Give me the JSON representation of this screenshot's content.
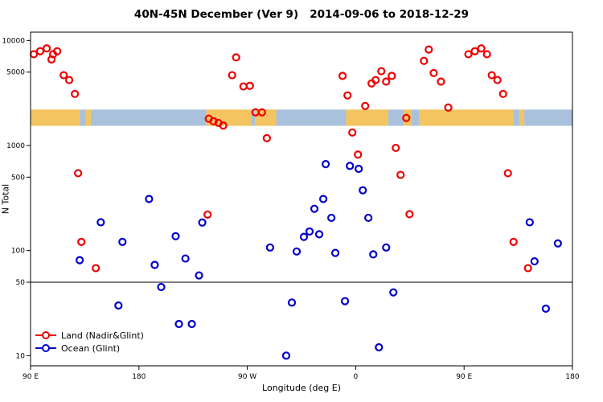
{
  "chart_data": {
    "type": "scatter",
    "title": "40N-45N December (Ver 9)   2014-09-06 to 2018-12-29",
    "xlabel": "Longitude (deg E)",
    "ylabel": "N Total",
    "y_scale": "log",
    "y_range": [
      8,
      12000
    ],
    "y_ticks": [
      10,
      50,
      100,
      500,
      1000,
      5000,
      10000
    ],
    "x_span_deg": 450,
    "x_ticks": [
      {
        "pos": 0,
        "label": "90 E"
      },
      {
        "pos": 90,
        "label": "180"
      },
      {
        "pos": 180,
        "label": "90 W"
      },
      {
        "pos": 270,
        "label": "0"
      },
      {
        "pos": 360,
        "label": "90 E"
      },
      {
        "pos": 450,
        "label": "180"
      }
    ],
    "reference_line_y": 50,
    "map_band": {
      "value_top": 2200,
      "value_bottom": 1540,
      "land_color": "#f3c45f",
      "ocean_color": "#a9c1dd",
      "segments": [
        {
          "from": 0,
          "to": 41,
          "type": "land"
        },
        {
          "from": 41,
          "to": 46,
          "type": "ocean"
        },
        {
          "from": 46,
          "to": 50,
          "type": "land"
        },
        {
          "from": 50,
          "to": 146,
          "type": "ocean"
        },
        {
          "from": 146,
          "to": 183,
          "type": "land"
        },
        {
          "from": 183,
          "to": 186.5,
          "type": "ocean"
        },
        {
          "from": 186.5,
          "to": 204,
          "type": "land"
        },
        {
          "from": 204,
          "to": 262,
          "type": "ocean"
        },
        {
          "from": 262,
          "to": 297,
          "type": "land"
        },
        {
          "from": 297,
          "to": 310,
          "type": "ocean"
        },
        {
          "from": 310,
          "to": 316,
          "type": "land"
        },
        {
          "from": 316,
          "to": 323,
          "type": "ocean"
        },
        {
          "from": 323,
          "to": 401,
          "type": "land"
        },
        {
          "from": 401,
          "to": 406,
          "type": "ocean"
        },
        {
          "from": 406,
          "to": 410,
          "type": "land"
        },
        {
          "from": 410,
          "to": 450,
          "type": "ocean"
        }
      ]
    },
    "series": [
      {
        "name": "Land (Nadir&Glint)",
        "color": "#ee0000",
        "points": [
          [
            2.7,
            7400
          ],
          [
            8,
            7900
          ],
          [
            13.4,
            8400
          ],
          [
            17.4,
            6600
          ],
          [
            18.7,
            7400
          ],
          [
            22.1,
            7900
          ],
          [
            27.5,
            4670
          ],
          [
            32.1,
            4200
          ],
          [
            36.8,
            3100
          ],
          [
            39.5,
            545
          ],
          [
            42.2,
            121
          ],
          [
            54.2,
            68
          ],
          [
            147,
            220
          ],
          [
            148,
            1800
          ],
          [
            152,
            1700
          ],
          [
            156,
            1640
          ],
          [
            160,
            1550
          ],
          [
            167.4,
            4670
          ],
          [
            170.7,
            6900
          ],
          [
            176.8,
            3650
          ],
          [
            182.1,
            3700
          ],
          [
            186.8,
            2070
          ],
          [
            192.2,
            2070
          ],
          [
            196.2,
            1175
          ],
          [
            259.1,
            4600
          ],
          [
            263.2,
            3000
          ],
          [
            267.2,
            1330
          ],
          [
            271.9,
            820
          ],
          [
            277.9,
            2380
          ],
          [
            283.2,
            3900
          ],
          [
            286.6,
            4200
          ],
          [
            291.3,
            5100
          ],
          [
            295.3,
            4060
          ],
          [
            300,
            4600
          ],
          [
            303.3,
            950
          ],
          [
            307.3,
            525
          ],
          [
            312,
            1830
          ],
          [
            314.7,
            222
          ],
          [
            326.7,
            6400
          ],
          [
            330.7,
            8200
          ],
          [
            334.8,
            4900
          ],
          [
            340.8,
            4060
          ],
          [
            346.9,
            2300
          ],
          [
            363.6,
            7400
          ],
          [
            368.9,
            7900
          ],
          [
            374.3,
            8400
          ],
          [
            379,
            7400
          ],
          [
            383,
            4670
          ],
          [
            387.7,
            4200
          ],
          [
            392.4,
            3100
          ],
          [
            396.4,
            545
          ],
          [
            401.1,
            121
          ],
          [
            413.1,
            68
          ]
        ]
      },
      {
        "name": "Ocean (Glint)",
        "color": "#0000cc",
        "points": [
          [
            40.8,
            81
          ],
          [
            58.3,
            186
          ],
          [
            73,
            30
          ],
          [
            76.3,
            121
          ],
          [
            98.4,
            310
          ],
          [
            103.1,
            73
          ],
          [
            108.5,
            45
          ],
          [
            120.5,
            137
          ],
          [
            123.2,
            20
          ],
          [
            128.6,
            84
          ],
          [
            133.9,
            20
          ],
          [
            139.9,
            58
          ],
          [
            142.6,
            185
          ],
          [
            198.9,
            107
          ],
          [
            212.3,
            10
          ],
          [
            217,
            32
          ],
          [
            221,
            98
          ],
          [
            227,
            135
          ],
          [
            231.7,
            152
          ],
          [
            235.7,
            250
          ],
          [
            239.7,
            143
          ],
          [
            243.1,
            310
          ],
          [
            245.1,
            665
          ],
          [
            249.8,
            205
          ],
          [
            253.1,
            95
          ],
          [
            261.1,
            33
          ],
          [
            265.2,
            640
          ],
          [
            272.5,
            600
          ],
          [
            275.9,
            375
          ],
          [
            280.5,
            205
          ],
          [
            284.6,
            92
          ],
          [
            289.3,
            12
          ],
          [
            295.3,
            107
          ],
          [
            301.3,
            40
          ],
          [
            414.5,
            186
          ],
          [
            418.5,
            79
          ],
          [
            427.9,
            28
          ],
          [
            437.9,
            117
          ]
        ]
      }
    ]
  },
  "legend": {
    "items": [
      {
        "label": "Land (Nadir&Glint)",
        "color": "#ee0000"
      },
      {
        "label": "Ocean (Glint)",
        "color": "#0000cc"
      }
    ]
  }
}
